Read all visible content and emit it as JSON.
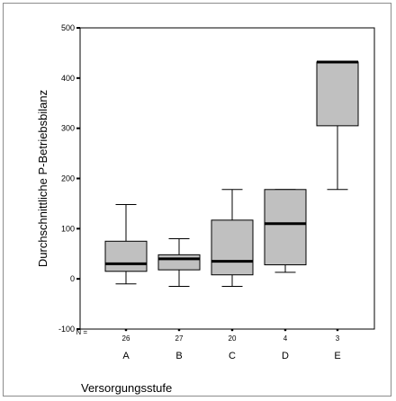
{
  "chart_data": {
    "type": "boxplot",
    "xlabel": "Versorgungsstufe",
    "ylabel": "Durchschnittliche P-Betriebsbilanz",
    "ylim": [
      -100,
      500
    ],
    "yticks": [
      -100,
      0,
      100,
      200,
      300,
      400,
      500
    ],
    "n_label": "N =",
    "categories": [
      "A",
      "B",
      "C",
      "D",
      "E"
    ],
    "n_values": [
      "26",
      "27",
      "20",
      "4",
      "3"
    ],
    "boxes": [
      {
        "category": "A",
        "whisker_low": -10,
        "q1": 15,
        "median": 30,
        "q3": 75,
        "whisker_high": 148
      },
      {
        "category": "B",
        "whisker_low": -15,
        "q1": 18,
        "median": 40,
        "q3": 48,
        "whisker_high": 80
      },
      {
        "category": "C",
        "whisker_low": -15,
        "q1": 8,
        "median": 35,
        "q3": 117,
        "whisker_high": 178
      },
      {
        "category": "D",
        "whisker_low": 13,
        "q1": 28,
        "median": 110,
        "q3": 178,
        "whisker_high": 178
      },
      {
        "category": "E",
        "whisker_low": 178,
        "q1": 305,
        "median": 432,
        "q3": 432,
        "whisker_high": 432
      }
    ],
    "colors": {
      "box_fill": "#c0c0c0",
      "stroke": "#000000",
      "median": "#000000"
    },
    "grid": false
  }
}
